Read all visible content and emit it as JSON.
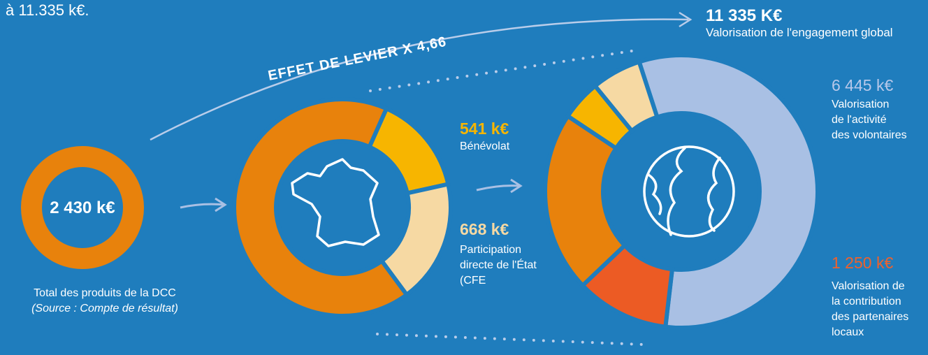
{
  "intro": "à 11.335 k€.",
  "leverage": "EFFET DE LEVIER X 4,66",
  "total": {
    "value": 2430,
    "label": "2 430 k€",
    "caption": "Total des produits de la DCC",
    "source": "(Source : Compte de résultat)"
  },
  "benevolat": {
    "value": 541,
    "label": "541 k€",
    "lines": [
      "Bénévolat"
    ]
  },
  "etat": {
    "value": 668,
    "label": "668 k€",
    "lines": [
      "Participation",
      "directe de l'État",
      "(CFE"
    ]
  },
  "global": {
    "value": 11335,
    "label": "11 335 K€",
    "caption": "Valorisation de l'engagement global"
  },
  "volontaires": {
    "value": 6445,
    "label": "6 445 k€",
    "lines": [
      "Valorisation",
      "de l'activité",
      "des volontaires"
    ]
  },
  "partenaires": {
    "value": 1250,
    "label": "1 250 k€",
    "lines": [
      "Valorisation de",
      "la contribution",
      "des partenaires",
      "locaux"
    ]
  }
}
